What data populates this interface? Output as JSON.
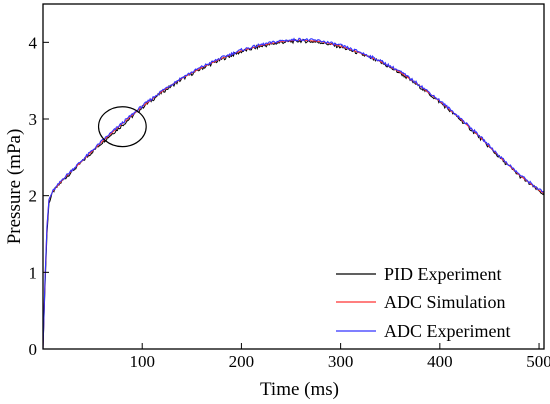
{
  "chart_data": {
    "type": "line",
    "xlabel": "Time (ms)",
    "ylabel": "Pressure (mPa)",
    "xlim": [
      0,
      505
    ],
    "ylim": [
      0,
      4.5
    ],
    "x_ticks": [
      100,
      200,
      300,
      400,
      500
    ],
    "y_ticks": [
      0,
      1,
      2,
      3,
      4
    ],
    "grid": false,
    "legend_position": "bottom-right",
    "annotation": {
      "type": "ellipse",
      "x": 80,
      "y": 2.9,
      "rx": 24,
      "ry": 0.26
    },
    "series": [
      {
        "name": "PID Experiment",
        "color": "#000000",
        "x": [
          0,
          2,
          4,
          6,
          10,
          20,
          40,
          60,
          80,
          100,
          120,
          140,
          160,
          180,
          200,
          220,
          240,
          260,
          280,
          300,
          320,
          340,
          360,
          380,
          400,
          420,
          440,
          460,
          480,
          500,
          505
        ],
        "y": [
          0.0,
          0.8,
          1.5,
          1.9,
          2.05,
          2.2,
          2.45,
          2.7,
          2.92,
          3.15,
          3.35,
          3.52,
          3.66,
          3.78,
          3.88,
          3.95,
          4.0,
          4.02,
          4.0,
          3.94,
          3.85,
          3.74,
          3.6,
          3.42,
          3.22,
          3.0,
          2.76,
          2.5,
          2.26,
          2.06,
          2.02
        ]
      },
      {
        "name": "ADC Simulation",
        "color": "#ff3333",
        "x": [
          0,
          2,
          4,
          6,
          10,
          20,
          40,
          60,
          80,
          100,
          120,
          140,
          160,
          180,
          200,
          220,
          240,
          260,
          280,
          300,
          320,
          340,
          360,
          380,
          400,
          420,
          440,
          460,
          480,
          500,
          505
        ],
        "y": [
          0.0,
          0.9,
          1.6,
          1.95,
          2.06,
          2.21,
          2.46,
          2.71,
          2.94,
          3.16,
          3.36,
          3.53,
          3.67,
          3.79,
          3.89,
          3.96,
          4.01,
          4.03,
          4.01,
          3.95,
          3.86,
          3.75,
          3.61,
          3.43,
          3.23,
          3.01,
          2.77,
          2.51,
          2.27,
          2.07,
          2.03
        ]
      },
      {
        "name": "ADC Experiment",
        "color": "#3333ff",
        "x": [
          0,
          2,
          4,
          6,
          10,
          20,
          40,
          60,
          80,
          100,
          120,
          140,
          160,
          180,
          200,
          220,
          240,
          260,
          280,
          300,
          320,
          340,
          360,
          380,
          400,
          420,
          440,
          460,
          480,
          500,
          505
        ],
        "y": [
          0.0,
          0.9,
          1.6,
          1.95,
          2.06,
          2.22,
          2.47,
          2.72,
          2.95,
          3.17,
          3.37,
          3.54,
          3.68,
          3.8,
          3.9,
          3.97,
          4.02,
          4.04,
          4.02,
          3.96,
          3.87,
          3.76,
          3.62,
          3.44,
          3.24,
          3.02,
          2.78,
          2.52,
          2.28,
          2.08,
          2.04
        ]
      }
    ]
  }
}
